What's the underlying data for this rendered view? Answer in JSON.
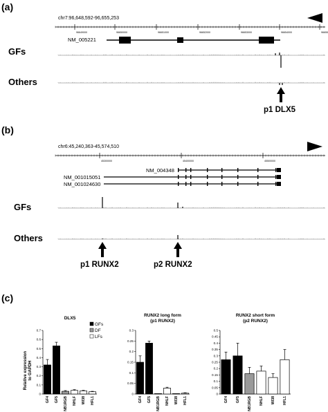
{
  "panel_a": {
    "label": "(a)",
    "coords": "chr7:96,648,592-96,655,253",
    "ticks": [
      "96649000",
      "96650000",
      "96651000",
      "96652000",
      "96653000",
      "96654000",
      "96655000"
    ],
    "gene": "NM_005221",
    "tracks": [
      "GFs",
      "Others"
    ],
    "promoter": "p1 DLX5"
  },
  "panel_b": {
    "label": "(b)",
    "coords": "chr6:45,240,363-45,574,510",
    "ticks": [
      "45300000",
      "45400000",
      "45500000"
    ],
    "genes": [
      "NM_004348",
      "NM_001015051",
      "NM_001024630"
    ],
    "tracks": [
      "GFs",
      "Others"
    ],
    "promoters": [
      "p1 RUNX2",
      "p2 RUNX2"
    ]
  },
  "panel_c": {
    "label": "(c)",
    "ylabel_line1": "Relative expression",
    "ylabel_line2": "to GAPDH",
    "legend": [
      "GFs",
      "DF",
      "LFs"
    ],
    "colors": {
      "GFs": "#000000",
      "DF": "#9a9a9a",
      "LFs": "#ffffff"
    }
  },
  "chart_data": [
    {
      "type": "bar",
      "title": "DLX5",
      "title2": "",
      "categories": [
        "GF4",
        "GF5",
        "NB1RGB",
        "NHLF",
        "WI38",
        "HFL1"
      ],
      "groups": [
        "GFs",
        "GFs",
        "DF",
        "LFs",
        "LFs",
        "LFs"
      ],
      "values": [
        0.32,
        0.53,
        0.03,
        0.04,
        0.035,
        0.025
      ],
      "errors": [
        0.06,
        0.04,
        0.008,
        0.008,
        0.006,
        0.005
      ],
      "ylim": [
        0,
        0.7
      ],
      "yticks": [
        "0",
        "0.1",
        "0.2",
        "0.3",
        "0.4",
        "0.5",
        "0.6",
        "0.7"
      ]
    },
    {
      "type": "bar",
      "title": "RUNX2 long form",
      "title2": "(p1 RUNX2)",
      "categories": [
        "GF4",
        "GF5",
        "NB1RGB",
        "NHLF",
        "WI38",
        "HFL1"
      ],
      "groups": [
        "GFs",
        "GFs",
        "DF",
        "LFs",
        "LFs",
        "LFs"
      ],
      "values": [
        0.15,
        0.24,
        0.0,
        0.028,
        0.0,
        0.004
      ],
      "errors": [
        0.03,
        0.01,
        0.0,
        0.004,
        0.0,
        0.002
      ],
      "ylim": [
        0,
        0.3
      ],
      "yticks": [
        "0",
        "0.05",
        "0.1",
        "0.15",
        "0.2",
        "0.25",
        "0.3"
      ]
    },
    {
      "type": "bar",
      "title": "RUNX2 short form",
      "title2": "(p2 RUNX2)",
      "categories": [
        "GF4",
        "GF5",
        "NB1RGB",
        "NHLF",
        "WI38",
        "HFL1"
      ],
      "groups": [
        "GFs",
        "GFs",
        "DF",
        "LFs",
        "LFs",
        "LFs"
      ],
      "values": [
        0.27,
        0.3,
        0.16,
        0.18,
        0.13,
        0.27
      ],
      "errors": [
        0.06,
        0.1,
        0.05,
        0.04,
        0.03,
        0.08
      ],
      "ylim": [
        0,
        0.5
      ],
      "yticks": [
        "0",
        "0.05",
        "0.1",
        "0.15",
        "0.2",
        "0.25",
        "0.3",
        "0.35",
        "0.4",
        "0.45",
        "0.5"
      ]
    }
  ]
}
